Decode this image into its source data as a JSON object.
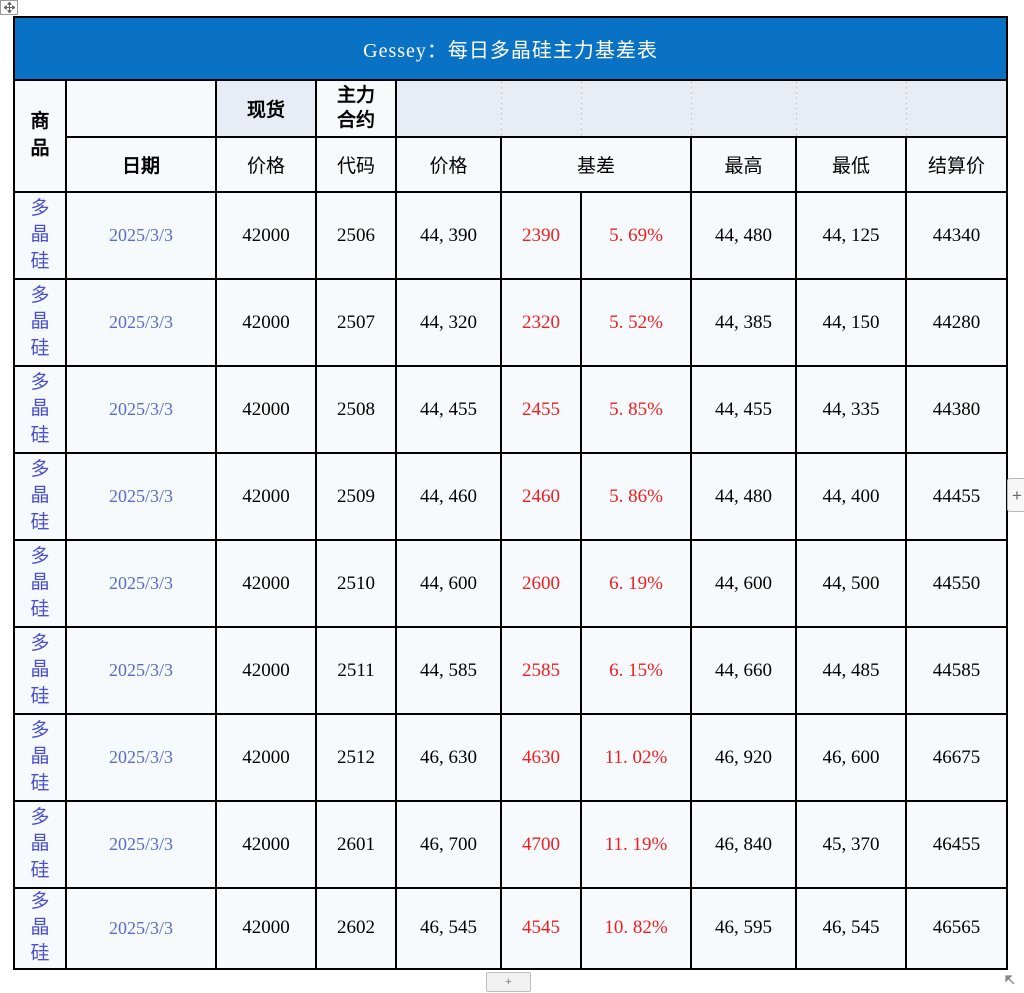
{
  "banner": {
    "title": "Gessey：每日多晶硅主力基差表",
    "bg_color": "#0a72c4",
    "text_color": "#ffffff"
  },
  "header": {
    "commodity": "商品",
    "date": "日期",
    "spot": "现货",
    "main_contract": "主力合约",
    "spot_price": "价格",
    "code": "代码",
    "futures_price": "价格",
    "basis": "基差",
    "high": "最高",
    "low": "最低",
    "settle": "结算价"
  },
  "rows": [
    {
      "commodity": "多晶硅",
      "date": "2025/3/3",
      "spot_price": "42000",
      "code": "2506",
      "price": "44, 390",
      "basis": "2390",
      "basis_pct": "5. 69%",
      "high": "44, 480",
      "low": "44, 125",
      "settle": "44340"
    },
    {
      "commodity": "多晶硅",
      "date": "2025/3/3",
      "spot_price": "42000",
      "code": "2507",
      "price": "44, 320",
      "basis": "2320",
      "basis_pct": "5. 52%",
      "high": "44, 385",
      "low": "44, 150",
      "settle": "44280"
    },
    {
      "commodity": "多晶硅",
      "date": "2025/3/3",
      "spot_price": "42000",
      "code": "2508",
      "price": "44, 455",
      "basis": "2455",
      "basis_pct": "5. 85%",
      "high": "44, 455",
      "low": "44, 335",
      "settle": "44380"
    },
    {
      "commodity": "多晶硅",
      "date": "2025/3/3",
      "spot_price": "42000",
      "code": "2509",
      "price": "44, 460",
      "basis": "2460",
      "basis_pct": "5. 86%",
      "high": "44, 480",
      "low": "44, 400",
      "settle": "44455"
    },
    {
      "commodity": "多晶硅",
      "date": "2025/3/3",
      "spot_price": "42000",
      "code": "2510",
      "price": "44, 600",
      "basis": "2600",
      "basis_pct": "6. 19%",
      "high": "44, 600",
      "low": "44, 500",
      "settle": "44550"
    },
    {
      "commodity": "多晶硅",
      "date": "2025/3/3",
      "spot_price": "42000",
      "code": "2511",
      "price": "44, 585",
      "basis": "2585",
      "basis_pct": "6. 15%",
      "high": "44, 660",
      "low": "44, 485",
      "settle": "44585"
    },
    {
      "commodity": "多晶硅",
      "date": "2025/3/3",
      "spot_price": "42000",
      "code": "2512",
      "price": "46, 630",
      "basis": "4630",
      "basis_pct": "11. 02%",
      "high": "46, 920",
      "low": "46, 600",
      "settle": "46675"
    },
    {
      "commodity": "多晶硅",
      "date": "2025/3/3",
      "spot_price": "42000",
      "code": "2601",
      "price": "46, 700",
      "basis": "4700",
      "basis_pct": "11. 19%",
      "high": "46, 840",
      "low": "45, 370",
      "settle": "46455"
    },
    {
      "commodity": "多晶硅",
      "date": "2025/3/3",
      "spot_price": "42000",
      "code": "2602",
      "price": "46, 545",
      "basis": "4545",
      "basis_pct": "10. 82%",
      "high": "46, 595",
      "low": "46, 545",
      "settle": "46565"
    }
  ],
  "controls": {
    "add_column_button": "+",
    "add_row_button": "+"
  },
  "colors": {
    "commodity_text": "#4a50cf",
    "date_text": "#5a6cc8",
    "basis_red": "#f01e1e",
    "header_accent_bg": "#e7ecf5",
    "cell_bg": "#f7fafd",
    "border": "#000000"
  }
}
